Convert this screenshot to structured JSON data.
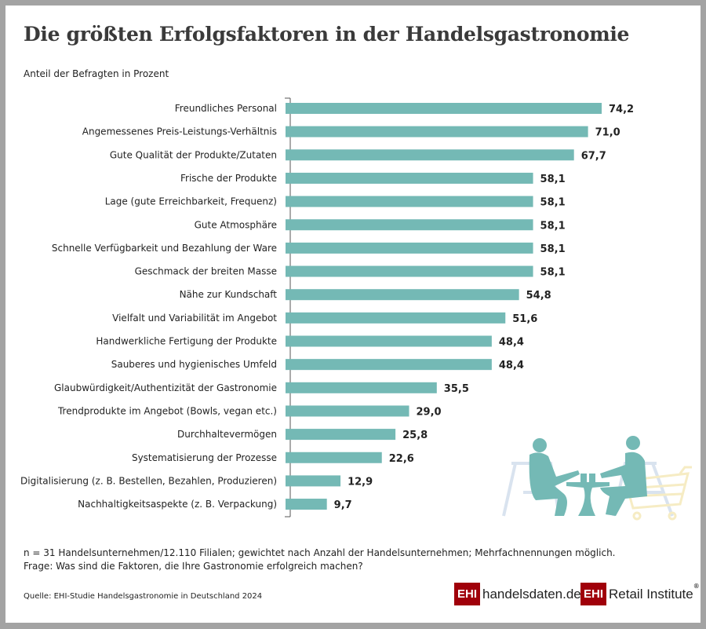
{
  "chart_data": {
    "type": "bar",
    "orientation": "horizontal",
    "title": "Die größten Erfolgsfaktoren in der Handelsgastronomie",
    "subtitle": "Anteil der Befragten in Prozent",
    "categories": [
      "Freundliches Personal",
      "Angemessenes Preis-Leistungs-Verhältnis",
      "Gute Qualität der Produkte/Zutaten",
      "Frische der Produkte",
      "Lage (gute Erreichbarkeit, Frequenz)",
      "Gute Atmosphäre",
      "Schnelle Verfügbarkeit und Bezahlung der Ware",
      "Geschmack der breiten Masse",
      "Nähe zur Kundschaft",
      "Vielfalt und Variabilität im Angebot",
      "Handwerkliche Fertigung der Produkte",
      "Sauberes und hygienisches Umfeld",
      "Glaubwürdigkeit/Authentizität der Gastronomie",
      "Trendprodukte im Angebot (Bowls, vegan etc.)",
      "Durchhaltevermögen",
      "Systematisierung der Prozesse",
      "Digitalisierung (z. B. Bestellen, Bezahlen, Produzieren)",
      "Nachhaltigkeitsaspekte (z. B. Verpackung)"
    ],
    "values": [
      74.2,
      71.0,
      67.7,
      58.1,
      58.1,
      58.1,
      58.1,
      58.1,
      54.8,
      51.6,
      48.4,
      48.4,
      35.5,
      29.0,
      25.8,
      22.6,
      12.9,
      9.7
    ],
    "labels": [
      "74,2",
      "71,0",
      "67,7",
      "58,1",
      "58,1",
      "58,1",
      "58,1",
      "58,1",
      "54,8",
      "51,6",
      "48,4",
      "48,4",
      "35,5",
      "29,0",
      "25,8",
      "22,6",
      "12,9",
      "9,7"
    ],
    "xlim": [
      0,
      80
    ],
    "grid": false,
    "bar_color": "#74b9b5"
  },
  "notes": {
    "line1": "n = 31 Handelsunternehmen/12.110 Filialen; gewichtet nach Anzahl der Handelsunternehmen; Mehrfachnennungen möglich.",
    "line2": "Frage: Was sind die Faktoren, die Ihre Gastronomie erfolgreich machen?"
  },
  "source": "Quelle: EHI-Studie Handelsgastronomie in Deutschland 2024",
  "logos": {
    "ehi": "EHI",
    "handelsdaten": "handelsdaten.de",
    "retail": "Retail Institute",
    "reg": "®"
  }
}
